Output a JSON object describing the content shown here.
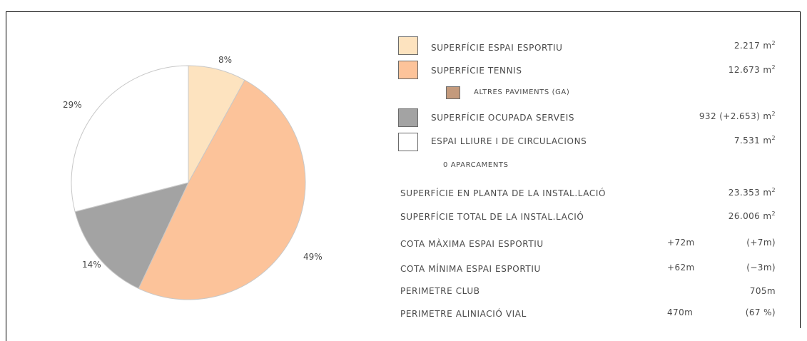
{
  "chart_data": {
    "type": "pie",
    "slices": [
      {
        "label": "8%",
        "value": 8,
        "color": "#fde3bf"
      },
      {
        "label": "49%",
        "value": 49,
        "color": "#fcc39a"
      },
      {
        "label": "14%",
        "value": 14,
        "color": "#a3a3a3"
      },
      {
        "label": "29%",
        "value": 29,
        "color": "#ffffff"
      }
    ],
    "outline_color": "#c8c8c8"
  },
  "legend": [
    {
      "label": "SUPERFÍCIE ESPAI ESPORTIU",
      "value": "2.217",
      "unit": "m",
      "sup": "2",
      "color": "#fde3bf"
    },
    {
      "label": "SUPERFÍCIE TENNIS",
      "value": "12.673",
      "unit": "m",
      "sup": "2",
      "color": "#fcc39a"
    },
    {
      "label": "ALTRES PAVIMENTS   (GA)",
      "color": "#c49a7c"
    },
    {
      "label": "SUPERFÍCIE OCUPADA SERVEIS",
      "value": "932  (+2.653)",
      "unit": "m",
      "sup": "2",
      "color": "#a3a3a3"
    },
    {
      "label": "ESPAI LLIURE I DE CIRCULACIONS",
      "value": "7.531",
      "unit": "m",
      "sup": "2",
      "color": "#ffffff"
    }
  ],
  "parking": "0    APARCAMENTS",
  "stats": [
    {
      "label": "SUPERFÍCIE EN PLANTA DE LA INSTAL.LACIÓ",
      "value": "23.353",
      "unit": "m",
      "sup": "2"
    },
    {
      "label": "SUPERFÍCIE TOTAL DE LA INSTAL.LACIÓ",
      "value": "26.006",
      "unit": "m",
      "sup": "2"
    },
    {
      "label": "COTA MÀXIMA ESPAI ESPORTIU",
      "mid": "+72m",
      "value": "(+7m)"
    },
    {
      "label": "COTA MÍNIMA ESPAI ESPORTIU",
      "mid": "+62m",
      "value": "(−3m)"
    },
    {
      "label": "PERIMETRE CLUB",
      "value": "705m"
    },
    {
      "label": "PERIMETRE ALINIACIÓ VIAL",
      "mid": "470m",
      "value": "(67 %)"
    }
  ]
}
